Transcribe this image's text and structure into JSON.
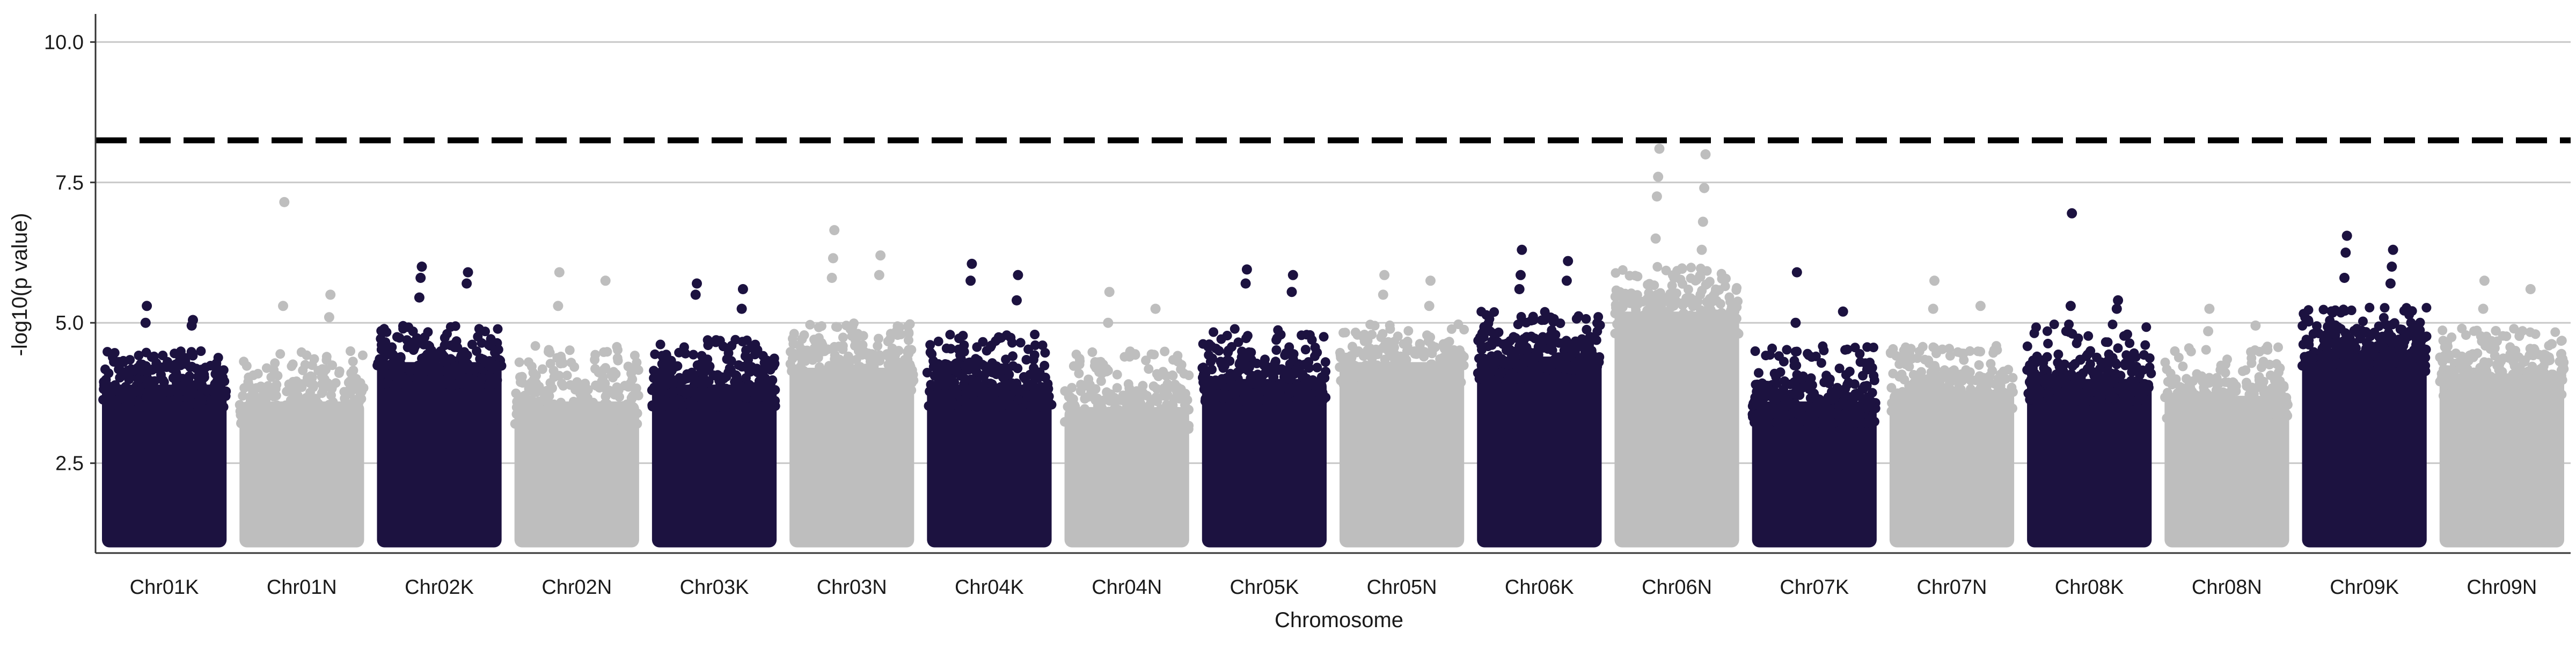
{
  "chart_data": {
    "type": "scatter",
    "title": "",
    "xlabel": "Chromosome",
    "ylabel": "-log10(p value)",
    "ylim": [
      0.9,
      10.5
    ],
    "yticks": [
      2.5,
      5.0,
      7.5,
      10.0
    ],
    "ytick_labels": [
      "2.5",
      "5.0",
      "7.5",
      "10.0"
    ],
    "grid": "horizontal major lines",
    "legend": "none",
    "threshold": {
      "value": 8.25,
      "style": "dashed",
      "color": "#000000"
    },
    "colors": {
      "odd": "#1c1240",
      "even": "#bebebe"
    },
    "categories": [
      "Chr01K",
      "Chr01N",
      "Chr02K",
      "Chr02N",
      "Chr03K",
      "Chr03N",
      "Chr04K",
      "Chr04N",
      "Chr05K",
      "Chr05N",
      "Chr06K",
      "Chr06N",
      "Chr07K",
      "Chr07N",
      "Chr08K",
      "Chr08N",
      "Chr09K",
      "Chr09N"
    ],
    "series": [
      {
        "category": "Chr01K",
        "dense_max": 3.9,
        "spread_max": 4.5,
        "peaks": [
          5.3,
          5.05,
          5.0,
          4.95
        ]
      },
      {
        "category": "Chr01N",
        "dense_max": 3.6,
        "spread_max": 4.5,
        "peaks": [
          7.15,
          5.5,
          5.3,
          5.1
        ]
      },
      {
        "category": "Chr02K",
        "dense_max": 4.3,
        "spread_max": 5.0,
        "peaks": [
          6.0,
          5.9,
          5.8,
          5.7,
          5.45
        ]
      },
      {
        "category": "Chr02N",
        "dense_max": 3.6,
        "spread_max": 4.6,
        "peaks": [
          5.9,
          5.75,
          5.3
        ]
      },
      {
        "category": "Chr03K",
        "dense_max": 3.9,
        "spread_max": 4.7,
        "peaks": [
          5.7,
          5.6,
          5.5,
          5.25
        ]
      },
      {
        "category": "Chr03N",
        "dense_max": 4.2,
        "spread_max": 5.0,
        "peaks": [
          6.65,
          6.2,
          6.15,
          5.85,
          5.8
        ]
      },
      {
        "category": "Chr04K",
        "dense_max": 3.9,
        "spread_max": 4.8,
        "peaks": [
          6.05,
          5.85,
          5.75,
          5.4
        ]
      },
      {
        "category": "Chr04N",
        "dense_max": 3.5,
        "spread_max": 4.5,
        "peaks": [
          5.55,
          5.25,
          5.0
        ]
      },
      {
        "category": "Chr05K",
        "dense_max": 4.0,
        "spread_max": 4.9,
        "peaks": [
          5.95,
          5.85,
          5.7,
          5.55
        ]
      },
      {
        "category": "Chr05N",
        "dense_max": 4.3,
        "spread_max": 5.0,
        "peaks": [
          5.85,
          5.75,
          5.5,
          5.3
        ]
      },
      {
        "category": "Chr06K",
        "dense_max": 4.4,
        "spread_max": 5.2,
        "peaks": [
          6.3,
          6.1,
          5.85,
          5.75,
          5.6
        ]
      },
      {
        "category": "Chr06N",
        "dense_max": 5.2,
        "spread_max": 6.0,
        "peaks": [
          8.1,
          8.0,
          7.6,
          7.4,
          7.25,
          6.8,
          6.5,
          6.3
        ]
      },
      {
        "category": "Chr07K",
        "dense_max": 3.6,
        "spread_max": 4.6,
        "peaks": [
          5.9,
          5.2,
          5.0
        ]
      },
      {
        "category": "Chr07N",
        "dense_max": 3.8,
        "spread_max": 4.6,
        "peaks": [
          5.75,
          5.3,
          5.25
        ]
      },
      {
        "category": "Chr08K",
        "dense_max": 4.0,
        "spread_max": 5.0,
        "peaks": [
          6.95,
          5.4,
          5.3,
          5.25
        ]
      },
      {
        "category": "Chr08N",
        "dense_max": 3.7,
        "spread_max": 4.6,
        "peaks": [
          5.25,
          4.95,
          4.85
        ]
      },
      {
        "category": "Chr09K",
        "dense_max": 4.5,
        "spread_max": 5.3,
        "peaks": [
          6.55,
          6.3,
          6.25,
          6.0,
          5.8,
          5.7
        ]
      },
      {
        "category": "Chr09N",
        "dense_max": 4.1,
        "spread_max": 4.9,
        "peaks": [
          5.75,
          5.6,
          5.25
        ]
      }
    ]
  }
}
